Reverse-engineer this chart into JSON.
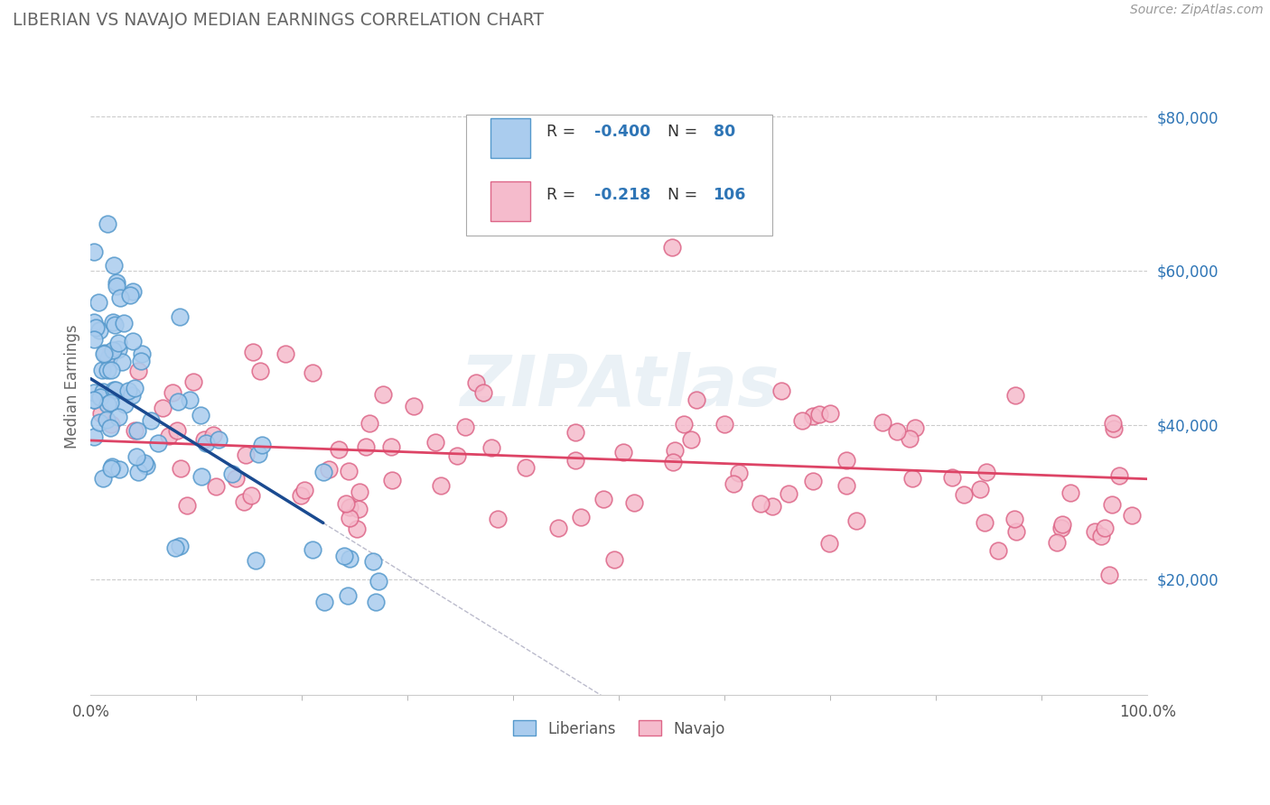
{
  "title": "LIBERIAN VS NAVAJO MEDIAN EARNINGS CORRELATION CHART",
  "ylabel": "Median Earnings",
  "source": "Source: ZipAtlas.com",
  "watermark": "ZIPAtlas",
  "xlim": [
    0.0,
    100.0
  ],
  "ylim": [
    5000,
    85000
  ],
  "yticks": [
    20000,
    40000,
    60000,
    80000
  ],
  "ytick_labels": [
    "$20,000",
    "$40,000",
    "$60,000",
    "$80,000"
  ],
  "lib_color": "#aaccee",
  "lib_edge": "#5599cc",
  "lib_trend_color": "#1a4a90",
  "nav_color": "#f5bbcc",
  "nav_edge": "#dd6688",
  "nav_trend_color": "#dd4466",
  "grid_color": "#cccccc",
  "diag_color": "#bbbbcc",
  "background_color": "#ffffff",
  "title_color": "#666666",
  "axis_label_color": "#666666",
  "yaxis_color": "#2e75b6",
  "source_color": "#999999",
  "watermark_color": "#dde8f0",
  "legend_R1": "-0.400",
  "legend_N1": "80",
  "legend_R2": "-0.218",
  "legend_N2": "106"
}
